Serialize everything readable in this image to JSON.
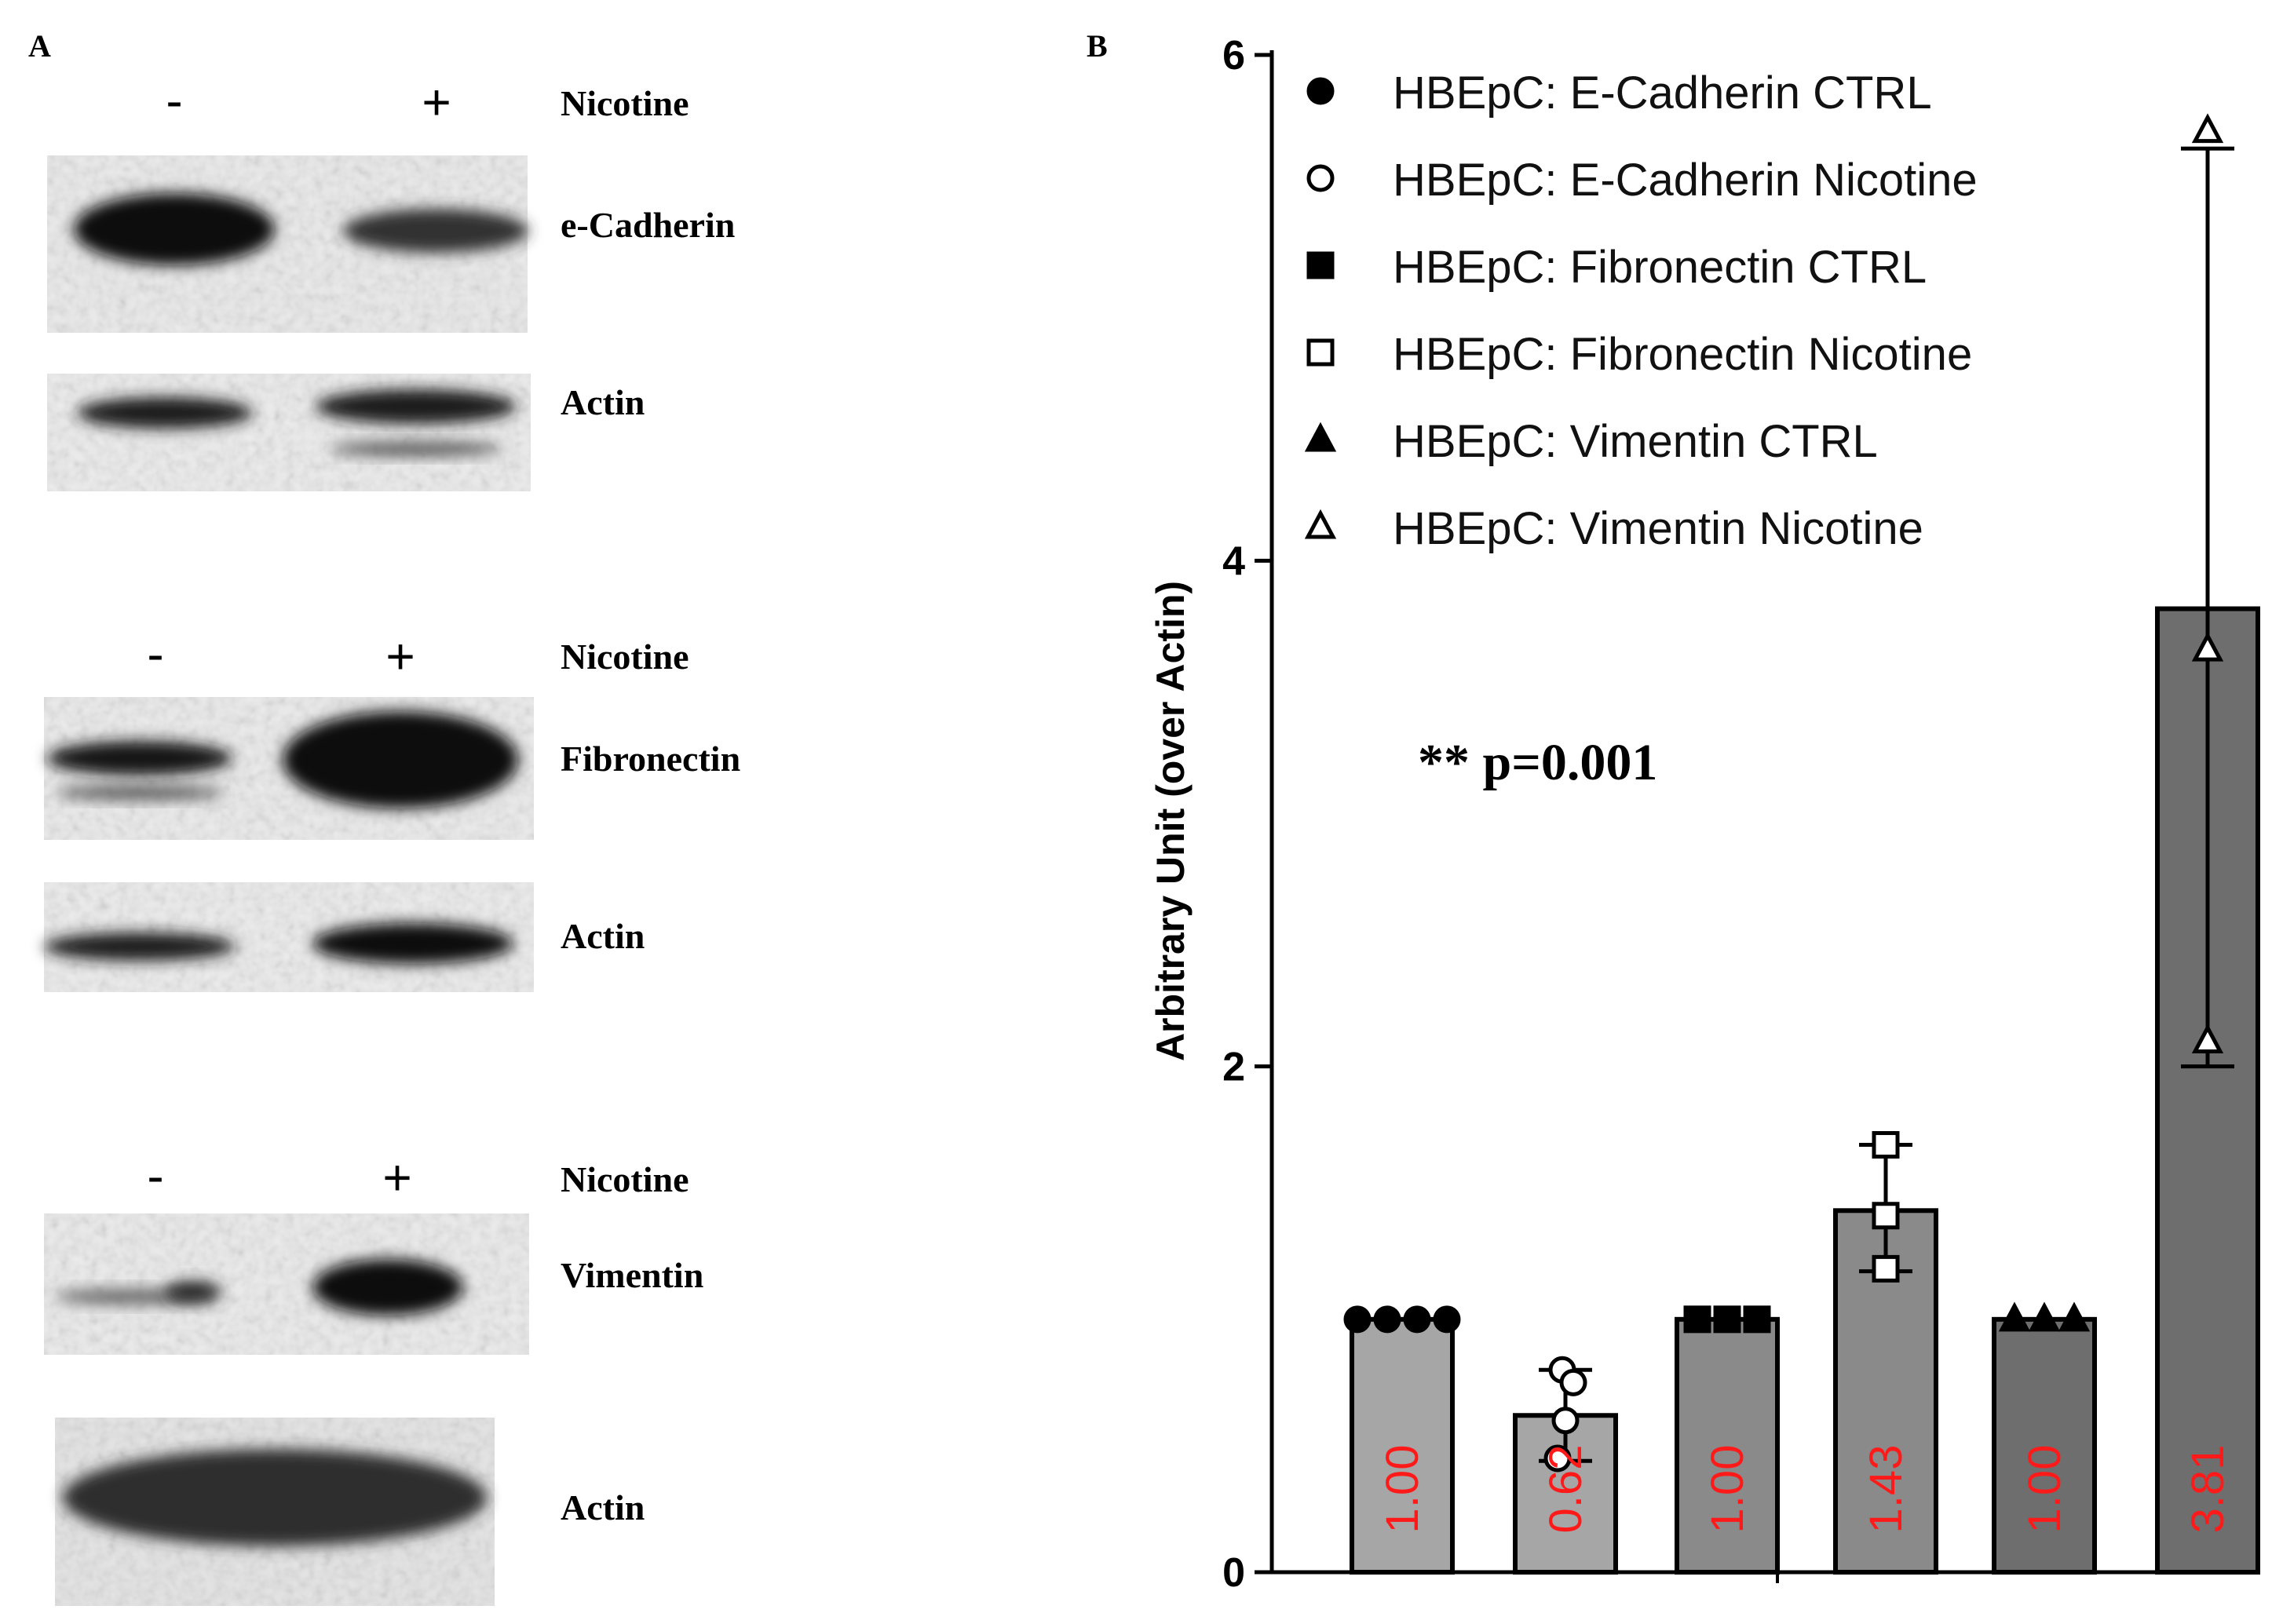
{
  "panel_a": {
    "label": "A",
    "groups": [
      {
        "minus": "-",
        "plus": "+",
        "treatment": "Nicotine",
        "blots": [
          {
            "label": "e-Cadherin",
            "ctrl_intensity": 1.0,
            "treated_intensity": 0.55
          },
          {
            "label": "Actin",
            "ctrl_intensity": 0.85,
            "treated_intensity": 0.85
          }
        ]
      },
      {
        "minus": "-",
        "plus": "+",
        "treatment": "Nicotine",
        "blots": [
          {
            "label": "Fibronectin",
            "ctrl_intensity": 0.75,
            "treated_intensity": 1.0
          },
          {
            "label": "Actin",
            "ctrl_intensity": 0.85,
            "treated_intensity": 0.85
          }
        ]
      },
      {
        "minus": "-",
        "plus": "+",
        "treatment": "Nicotine",
        "blots": [
          {
            "label": "Vimentin",
            "ctrl_intensity": 0.3,
            "treated_intensity": 0.9
          },
          {
            "label": "Actin",
            "ctrl_intensity": 0.75,
            "treated_intensity": 0.75
          }
        ]
      }
    ]
  },
  "panel_b_label": "B",
  "significance": "** p=0.001",
  "chart_data": {
    "type": "bar",
    "ylabel": "Arbitrary Unit (over Actin)",
    "ylim": [
      0,
      6
    ],
    "yticks": [
      "0",
      "2",
      "4",
      "6"
    ],
    "legend_position": "top-right",
    "categories": [
      "HBEpC: E-Cadherin CTRL",
      "HBEpC: E-Cadherin Nicotine",
      "HBEpC: Fibronectin CTRL",
      "HBEpC: Fibronectin Nicotine",
      "HBEpC: Vimentin CTRL",
      "HBEpC: Vimentin Nicotine"
    ],
    "series": [
      {
        "name": "HBEpC: E-Cadherin CTRL",
        "marker": "circle-filled",
        "value": 1.0,
        "label": "1.00",
        "error": [
          1.0,
          1.0
        ],
        "points": [
          1.0,
          1.0,
          1.0,
          1.0
        ],
        "color": "#a6a6a6"
      },
      {
        "name": "HBEpC: E-Cadherin Nicotine",
        "marker": "circle-open",
        "value": 0.62,
        "label": "0.62",
        "error": [
          0.44,
          0.8
        ],
        "points": [
          0.8,
          0.75,
          0.6,
          0.45
        ],
        "color": "#a6a6a6"
      },
      {
        "name": "HBEpC: Fibronectin CTRL",
        "marker": "square-filled",
        "value": 1.0,
        "label": "1.00",
        "error": [
          1.0,
          1.0
        ],
        "points": [
          1.0,
          1.0,
          1.0
        ],
        "color": "#8a8a8a"
      },
      {
        "name": "HBEpC: Fibronectin Nicotine",
        "marker": "square-open",
        "value": 1.43,
        "label": "1.43",
        "error": [
          1.19,
          1.69
        ],
        "points": [
          1.69,
          1.41,
          1.2
        ],
        "color": "#8a8a8a"
      },
      {
        "name": "HBEpC: Vimentin CTRL",
        "marker": "triangle-filled",
        "value": 1.0,
        "label": "1.00",
        "error": [
          1.0,
          1.0
        ],
        "points": [
          1.0,
          1.0,
          1.0
        ],
        "color": "#6e6e6e"
      },
      {
        "name": "HBEpC: Vimentin Nicotine",
        "marker": "triangle-open",
        "value": 3.81,
        "label": "3.81",
        "error": [
          2.0,
          5.63
        ],
        "points": [
          5.7,
          3.65,
          2.1
        ],
        "color": "#6e6e6e"
      }
    ]
  }
}
